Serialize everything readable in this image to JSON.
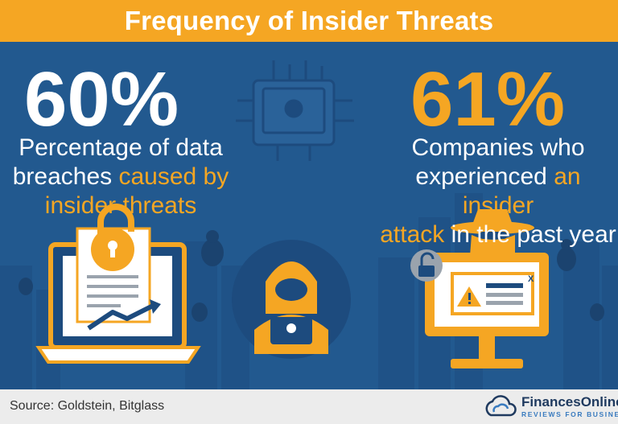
{
  "title": "Frequency of Insider Threats",
  "left_stat": {
    "value": "60%",
    "line1": "Percentage of data",
    "line2_plain": "breaches ",
    "line2_highlight": "caused by",
    "line3_highlight": "insider threats"
  },
  "right_stat": {
    "value": "61%",
    "line1": "Companies who",
    "line2_plain": "experienced ",
    "line2_highlight": "an insider",
    "line3_highlight": "attack",
    "line3_plain": " in the past year"
  },
  "popup": {
    "close_label": "X"
  },
  "footer": {
    "source": "Source: Goldstein, Bitglass",
    "brand": "FinancesOnline",
    "tagline": "REVIEWS FOR BUSINESS"
  },
  "colors": {
    "background": "#22598f",
    "accent": "#f5a623",
    "footer": "#ececec"
  },
  "icons": [
    "chip-skull-icon",
    "laptop-document-icon",
    "padlock-open-icon",
    "trend-arrow-icon",
    "bug-icon",
    "hacker-icon",
    "monitor-warning-icon",
    "spy-icon"
  ]
}
